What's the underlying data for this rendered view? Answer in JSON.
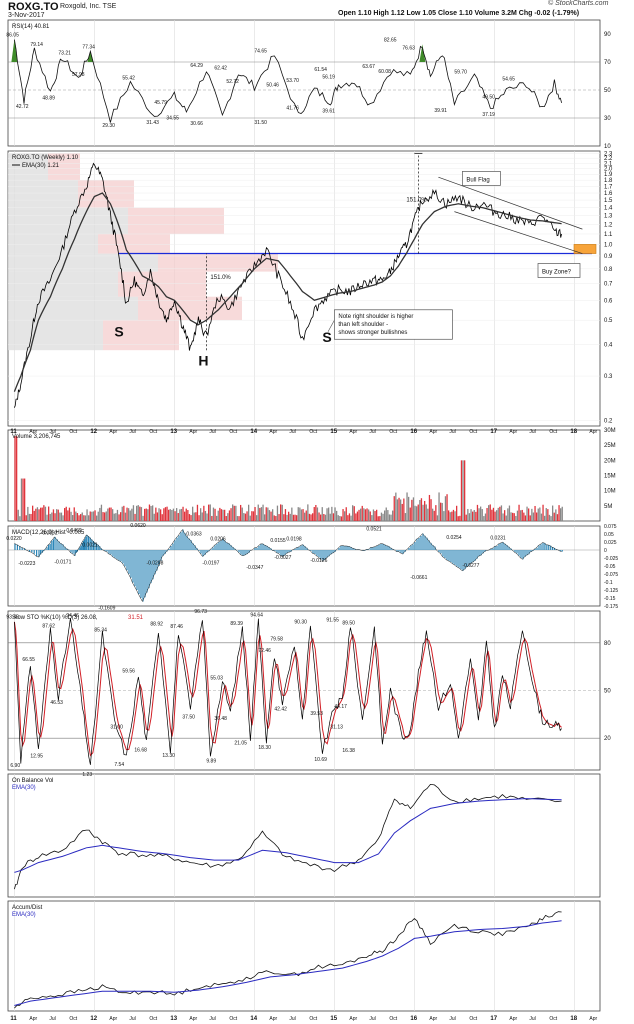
{
  "header": {
    "ticker": "ROXG.TO",
    "company": "Roxgold, Inc.  TSE",
    "date": "3-Nov-2017",
    "quote": "Open 1.10  High 1.12  Low 1.05  Close 1.10  Volume 3.2M  Chg -0.02 (-1.79%)",
    "quote_icon": "red-down-triangle-icon",
    "logo": "© StockCharts.com"
  },
  "colors": {
    "price": "#000000",
    "ema": "#333333",
    "support_line": "#1a2bd9",
    "volume_up": "#888888",
    "volume_down": "#e0343c",
    "macd_hist": "#2b86b8",
    "sto_k": "#000000",
    "sto_d": "#d21f26",
    "obv_ema": "#2a2ac0",
    "rsi_fill": "#3f8b2a",
    "buy_zone": "#f7a43a"
  },
  "chart_data": [
    {
      "type": "line",
      "panel": "rsi",
      "title": "RSI(14) 40.81",
      "yticks": [
        10,
        30,
        50,
        70,
        90
      ],
      "ylim": [
        10,
        100
      ],
      "x": [
        2011.0,
        2011.12,
        2011.25,
        2011.45,
        2011.6,
        2011.8,
        2011.95,
        2012.2,
        2012.45,
        2012.75,
        2013.0,
        2013.15,
        2013.4,
        2013.6,
        2013.8,
        2014.0,
        2014.25,
        2014.55,
        2014.75,
        2014.95,
        2015.05,
        2015.25,
        2015.45,
        2015.7,
        2015.95,
        2016.1,
        2016.2,
        2016.35,
        2016.5,
        2016.75,
        2016.95,
        2017.15,
        2017.4,
        2017.6,
        2017.75,
        2017.84
      ],
      "values": [
        86.05,
        42.72,
        79.14,
        48.89,
        73.21,
        57.98,
        77.34,
        29.3,
        55.42,
        31.43,
        45.79,
        34.55,
        64.29,
        30.66,
        62.42,
        52.72,
        74.65,
        31.5,
        50.46,
        41.76,
        53.7,
        56.19,
        39.61,
        63.67,
        60.08,
        82.65,
        60.08,
        76.63,
        39.91,
        59.7,
        37.19,
        49.5,
        54.65,
        37.19,
        54.65,
        40.81
      ],
      "labels": [
        {
          "x": 2011.0,
          "y": 86.05,
          "text": "86.05"
        },
        {
          "x": 2011.3,
          "y": 79.14,
          "text": "79.14"
        },
        {
          "x": 2011.65,
          "y": 73.21,
          "text": "73.21"
        },
        {
          "x": 2011.95,
          "y": 77.34,
          "text": "77.34"
        },
        {
          "x": 2011.12,
          "y": 42.72,
          "text": "42.72"
        },
        {
          "x": 2011.45,
          "y": 48.89,
          "text": "48.89"
        },
        {
          "x": 2011.82,
          "y": 57.98,
          "text": "57.98"
        },
        {
          "x": 2012.45,
          "y": 55.42,
          "text": "55.42"
        },
        {
          "x": 2012.2,
          "y": 29.3,
          "text": "29.30"
        },
        {
          "x": 2012.75,
          "y": 31.43,
          "text": "31.43"
        },
        {
          "x": 2012.85,
          "y": 45.79,
          "text": "45.79"
        },
        {
          "x": 2013.0,
          "y": 34.55,
          "text": "34.55"
        },
        {
          "x": 2013.3,
          "y": 64.29,
          "text": "64.29"
        },
        {
          "x": 2013.3,
          "y": 30.66,
          "text": "30.66"
        },
        {
          "x": 2013.6,
          "y": 62.42,
          "text": "62.42"
        },
        {
          "x": 2013.75,
          "y": 52.72,
          "text": "52.72"
        },
        {
          "x": 2014.1,
          "y": 74.65,
          "text": "74.65"
        },
        {
          "x": 2014.25,
          "y": 50.46,
          "text": "50.46"
        },
        {
          "x": 2014.1,
          "y": 31.5,
          "text": "31.50"
        },
        {
          "x": 2014.5,
          "y": 53.7,
          "text": "53.70"
        },
        {
          "x": 2014.5,
          "y": 41.76,
          "text": "41.76"
        },
        {
          "x": 2014.85,
          "y": 61.54,
          "text": "61.54"
        },
        {
          "x": 2014.95,
          "y": 56.19,
          "text": "56.19"
        },
        {
          "x": 2014.95,
          "y": 39.61,
          "text": "39.61"
        },
        {
          "x": 2015.45,
          "y": 63.67,
          "text": "63.67"
        },
        {
          "x": 2015.65,
          "y": 60.08,
          "text": "60.08"
        },
        {
          "x": 2015.72,
          "y": 82.65,
          "text": "82.65"
        },
        {
          "x": 2015.95,
          "y": 76.63,
          "text": "76.63"
        },
        {
          "x": 2016.35,
          "y": 39.91,
          "text": "39.91"
        },
        {
          "x": 2016.6,
          "y": 59.7,
          "text": "59.70"
        },
        {
          "x": 2016.95,
          "y": 49.5,
          "text": "49.50"
        },
        {
          "x": 2017.2,
          "y": 54.65,
          "text": "54.65"
        },
        {
          "x": 2016.95,
          "y": 37.19,
          "text": "37.19"
        }
      ]
    },
    {
      "type": "line",
      "panel": "price",
      "title": "ROXG.TO (Weekly) 1.10",
      "series_labels": [
        "EMA(30) 1.21"
      ],
      "yscale": "log",
      "yticks": [
        0.2,
        0.3,
        0.4,
        0.5,
        0.6,
        0.7,
        0.8,
        0.9,
        1.0,
        1.1,
        1.2,
        1.3,
        1.4,
        1.5,
        1.6,
        1.7,
        1.8,
        1.9,
        2.0,
        2.1,
        2.2,
        2.3
      ],
      "ylim": [
        0.19,
        2.35
      ],
      "x": [
        2011.0,
        2011.08,
        2011.2,
        2011.3,
        2011.45,
        2011.6,
        2011.75,
        2011.9,
        2012.0,
        2012.1,
        2012.2,
        2012.3,
        2012.4,
        2012.5,
        2012.6,
        2012.7,
        2012.8,
        2012.9,
        2013.0,
        2013.1,
        2013.2,
        2013.3,
        2013.4,
        2013.55,
        2013.7,
        2013.85,
        2014.0,
        2014.15,
        2014.3,
        2014.45,
        2014.6,
        2014.75,
        2014.9,
        2015.05,
        2015.2,
        2015.35,
        2015.5,
        2015.6,
        2015.7,
        2015.8,
        2015.9,
        2016.0,
        2016.1,
        2016.25,
        2016.4,
        2016.55,
        2016.7,
        2016.85,
        2017.0,
        2017.15,
        2017.3,
        2017.45,
        2017.6,
        2017.75,
        2017.84
      ],
      "values": [
        0.22,
        0.28,
        0.42,
        0.6,
        0.72,
        0.95,
        1.35,
        1.7,
        2.1,
        1.8,
        1.3,
        0.9,
        0.58,
        0.72,
        0.62,
        0.78,
        0.6,
        0.5,
        0.6,
        0.48,
        0.38,
        0.5,
        0.43,
        0.62,
        0.56,
        0.7,
        0.82,
        0.95,
        0.75,
        0.58,
        0.42,
        0.55,
        0.62,
        0.66,
        0.65,
        0.7,
        0.72,
        0.72,
        0.78,
        0.9,
        1.0,
        1.25,
        1.5,
        1.6,
        1.45,
        1.55,
        1.4,
        1.45,
        1.35,
        1.3,
        1.25,
        1.2,
        1.3,
        1.12,
        1.1
      ],
      "ema30": [
        0.26,
        0.3,
        0.38,
        0.5,
        0.62,
        0.8,
        1.05,
        1.35,
        1.55,
        1.6,
        1.45,
        1.2,
        0.95,
        0.85,
        0.75,
        0.72,
        0.68,
        0.62,
        0.6,
        0.55,
        0.5,
        0.48,
        0.5,
        0.55,
        0.62,
        0.7,
        0.8,
        0.88,
        0.86,
        0.75,
        0.65,
        0.6,
        0.62,
        0.64,
        0.65,
        0.67,
        0.69,
        0.71,
        0.75,
        0.82,
        0.92,
        1.05,
        1.2,
        1.35,
        1.42,
        1.45,
        1.42,
        1.4,
        1.36,
        1.32,
        1.28,
        1.25,
        1.24,
        1.22,
        1.21
      ],
      "support_level": 0.92,
      "annotations": {
        "left_shoulder": "S",
        "head": "H",
        "right_shoulder": "S",
        "pct_head": "151.0%",
        "pct_breakout": "151.0%",
        "note": "Note right shoulder is higher than left shoulder - shows stronger bullishnes",
        "bull_flag": "Bull Flag",
        "buy_zone": "Buy Zone?"
      }
    },
    {
      "type": "bar",
      "panel": "volume",
      "title": "Volume 3,206,745",
      "yticks": [
        "5M",
        "10M",
        "15M",
        "20M",
        "25M",
        "30M"
      ],
      "ylim": [
        0,
        30
      ],
      "note": "weekly volume in millions; spikes ~28M (2011), ~20M (mid-2017)"
    },
    {
      "type": "bar",
      "panel": "macd",
      "title": "MACD(12,26,9) Hist -0.005",
      "yticks": [
        0.075,
        0.05,
        0.025,
        0.0,
        -0.025,
        -0.05,
        -0.075,
        -0.1,
        -0.125,
        -0.15,
        -0.175
      ],
      "ylim": [
        -0.175,
        0.075
      ],
      "x": [
        2011.0,
        2011.3,
        2011.5,
        2011.75,
        2011.9,
        2012.1,
        2012.35,
        2012.6,
        2012.85,
        2013.1,
        2013.35,
        2013.6,
        2013.85,
        2014.1,
        2014.35,
        2014.6,
        2014.85,
        2015.1,
        2015.35,
        2015.6,
        2015.85,
        2016.1,
        2016.35,
        2016.6,
        2016.85,
        2017.1,
        2017.35,
        2017.6,
        2017.84
      ],
      "values": [
        0.022,
        -0.022,
        0.039,
        -0.017,
        0.046,
        0.002,
        -0.04,
        -0.16,
        -0.02,
        0.062,
        -0.02,
        0.036,
        -0.019,
        0.021,
        -0.02,
        0.018,
        -0.035,
        0.016,
        -0.003,
        0.02,
        -0.013,
        0.052,
        -0.02,
        -0.066,
        -0.01,
        0.025,
        -0.028,
        0.023,
        -0.005
      ],
      "labels": [
        {
          "x": 2011.0,
          "y": 0.022,
          "text": "0.0220"
        },
        {
          "x": 2011.15,
          "y": -0.0223,
          "text": "-0.0223"
        },
        {
          "x": 2011.45,
          "y": 0.0392,
          "text": "0.0392"
        },
        {
          "x": 2011.6,
          "y": -0.0171,
          "text": "-0.0171"
        },
        {
          "x": 2011.75,
          "y": 0.0462,
          "text": "0.0462"
        },
        {
          "x": 2011.95,
          "y": 0.0021,
          "text": "0.0021"
        },
        {
          "x": 2012.15,
          "y": -0.1609,
          "text": "-0.1609"
        },
        {
          "x": 2012.55,
          "y": 0.062,
          "text": "0.0620"
        },
        {
          "x": 2012.75,
          "y": -0.0208,
          "text": "-0.0208"
        },
        {
          "x": 2013.25,
          "y": 0.0363,
          "text": "0.0363"
        },
        {
          "x": 2013.55,
          "y": 0.0206,
          "text": "0.0206"
        },
        {
          "x": 2013.45,
          "y": -0.0197,
          "text": "-0.0197"
        },
        {
          "x": 2014.0,
          "y": -0.0347,
          "text": "-0.0347"
        },
        {
          "x": 2014.3,
          "y": 0.0155,
          "text": "0.0155"
        },
        {
          "x": 2014.5,
          "y": 0.0198,
          "text": "0.0198"
        },
        {
          "x": 2014.35,
          "y": -0.0027,
          "text": "-0.0027"
        },
        {
          "x": 2014.8,
          "y": -0.0126,
          "text": "-0.0126"
        },
        {
          "x": 2015.5,
          "y": 0.0521,
          "text": "0.0521"
        },
        {
          "x": 2016.05,
          "y": -0.0661,
          "text": "-0.0661"
        },
        {
          "x": 2016.5,
          "y": 0.0254,
          "text": "0.0254"
        },
        {
          "x": 2016.7,
          "y": -0.0277,
          "text": "-0.0277"
        },
        {
          "x": 2017.05,
          "y": 0.0231,
          "text": "0.0231"
        }
      ]
    },
    {
      "type": "line",
      "panel": "stochastic",
      "title": "Slow STO %K(10) %D(3) 26.08,",
      "title_d_value": "31.51",
      "yticks": [
        20,
        50,
        80
      ],
      "ylim": [
        0,
        100
      ],
      "x": [
        2011.0,
        2011.08,
        2011.2,
        2011.3,
        2011.45,
        2011.55,
        2011.7,
        2011.85,
        2011.95,
        2012.1,
        2012.25,
        2012.4,
        2012.55,
        2012.65,
        2012.8,
        2012.95,
        2013.05,
        2013.2,
        2013.35,
        2013.45,
        2013.6,
        2013.7,
        2013.85,
        2013.95,
        2014.05,
        2014.15,
        2014.25,
        2014.35,
        2014.5,
        2014.6,
        2014.7,
        2014.85,
        2015.0,
        2015.1,
        2015.2,
        2015.35,
        2015.5,
        2015.6,
        2015.7,
        2015.85,
        2015.95,
        2016.05,
        2016.15,
        2016.3,
        2016.45,
        2016.55,
        2016.7,
        2016.8,
        2016.9,
        2017.0,
        2017.1,
        2017.2,
        2017.35,
        2017.5,
        2017.6,
        2017.75,
        2017.84
      ],
      "values": [
        93.46,
        6.9,
        66.55,
        12.95,
        87.62,
        46.53,
        94.46,
        40,
        1.23,
        85.34,
        31.0,
        7.54,
        59.56,
        16.68,
        88.92,
        13.3,
        87.46,
        37.5,
        96.73,
        9.89,
        55.03,
        36.48,
        89.39,
        21.05,
        94.64,
        18.3,
        72.46,
        42.42,
        79.58,
        30,
        90.3,
        10.69,
        39.53,
        44.17,
        91.55,
        31.13,
        89.5,
        16.38,
        50,
        20,
        26.08,
        60,
        88,
        40,
        55,
        20,
        70,
        30,
        80,
        25,
        60,
        40,
        89.5,
        50,
        31.51,
        28,
        26.08
      ],
      "labels": [
        {
          "x": 2011.0,
          "y": 93.46,
          "text": "93.46"
        },
        {
          "x": 2011.05,
          "y": 6.9,
          "text": "6.90"
        },
        {
          "x": 2011.2,
          "y": 66.55,
          "text": "66.55"
        },
        {
          "x": 2011.3,
          "y": 12.95,
          "text": "12.95"
        },
        {
          "x": 2011.45,
          "y": 87.62,
          "text": "87.62"
        },
        {
          "x": 2011.55,
          "y": 46.53,
          "text": "46.53"
        },
        {
          "x": 2011.75,
          "y": 94.46,
          "text": "94.46"
        },
        {
          "x": 2011.95,
          "y": 1.23,
          "text": "1.23"
        },
        {
          "x": 2012.1,
          "y": 85.34,
          "text": "85.34"
        },
        {
          "x": 2012.3,
          "y": 31.0,
          "text": "31.00"
        },
        {
          "x": 2012.35,
          "y": 7.54,
          "text": "7.54"
        },
        {
          "x": 2012.45,
          "y": 59.56,
          "text": "59.56"
        },
        {
          "x": 2012.6,
          "y": 16.68,
          "text": "16.68"
        },
        {
          "x": 2012.8,
          "y": 88.92,
          "text": "88.92"
        },
        {
          "x": 2012.95,
          "y": 13.3,
          "text": "13.30"
        },
        {
          "x": 2013.05,
          "y": 87.46,
          "text": "87.46"
        },
        {
          "x": 2013.2,
          "y": 37.5,
          "text": "37.50"
        },
        {
          "x": 2013.35,
          "y": 96.73,
          "text": "96.73"
        },
        {
          "x": 2013.5,
          "y": 9.89,
          "text": "9.89"
        },
        {
          "x": 2013.55,
          "y": 55.03,
          "text": "55.03"
        },
        {
          "x": 2013.6,
          "y": 36.48,
          "text": "36.48"
        },
        {
          "x": 2013.8,
          "y": 89.39,
          "text": "89.39"
        },
        {
          "x": 2013.85,
          "y": 21.05,
          "text": "21.05"
        },
        {
          "x": 2014.05,
          "y": 94.64,
          "text": "94.64"
        },
        {
          "x": 2014.15,
          "y": 18.3,
          "text": "18.30"
        },
        {
          "x": 2014.15,
          "y": 72.46,
          "text": "72.46"
        },
        {
          "x": 2014.3,
          "y": 79.58,
          "text": "79.58"
        },
        {
          "x": 2014.35,
          "y": 42.42,
          "text": "42.42"
        },
        {
          "x": 2014.6,
          "y": 90.3,
          "text": "90.30"
        },
        {
          "x": 2014.85,
          "y": 10.69,
          "text": "10.69"
        },
        {
          "x": 2014.8,
          "y": 39.53,
          "text": "39.53"
        },
        {
          "x": 2015.1,
          "y": 44.17,
          "text": "44.17"
        },
        {
          "x": 2015.0,
          "y": 91.55,
          "text": "91.55"
        },
        {
          "x": 2015.05,
          "y": 31.13,
          "text": "31.13"
        },
        {
          "x": 2015.2,
          "y": 89.5,
          "text": "89.50"
        },
        {
          "x": 2015.2,
          "y": 16.38,
          "text": "16.38"
        }
      ]
    },
    {
      "type": "line",
      "panel": "obv",
      "title": "On Balance Vol",
      "series_labels": [
        "EMA(30)"
      ]
    },
    {
      "type": "line",
      "panel": "accum_dist",
      "title": "Accum/Dist",
      "series_labels": [
        "EMA(30)"
      ]
    }
  ],
  "xaxis": {
    "year_labels": [
      "11",
      "12",
      "13",
      "14",
      "15",
      "16",
      "17",
      "18"
    ],
    "month_labels": [
      "Apr",
      "Jul",
      "Oct"
    ],
    "last_month_label": "Apr"
  }
}
